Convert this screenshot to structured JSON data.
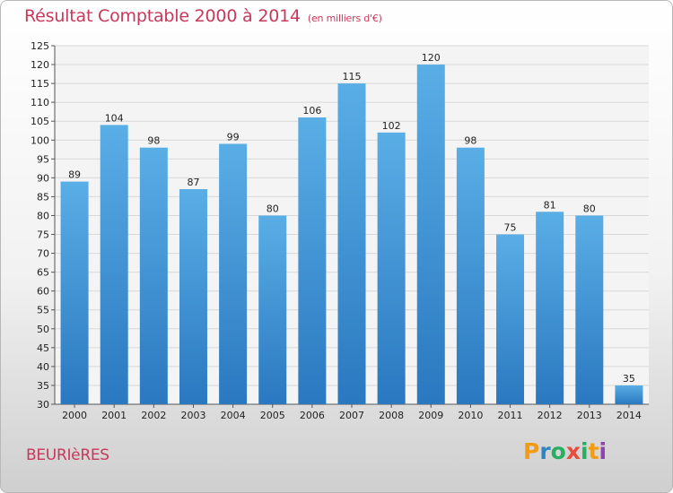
{
  "title": "Résultat Comptable 2000 à 2014",
  "subtitle": "(en milliers d'€)",
  "commune": "BEURIèRES",
  "logo": {
    "letters": [
      "P",
      "r",
      "o",
      "x",
      "i",
      "t",
      "i"
    ],
    "colors": [
      "#f39c12",
      "#2e86c1",
      "#27ae60",
      "#e74c3c",
      "#27ae60",
      "#f39c12",
      "#8e44ad"
    ]
  },
  "colors": {
    "bar_top": "#5aaee6",
    "bar_bottom": "#2a78c0",
    "grid": "#d8d8d8",
    "title": "#c8385a"
  },
  "chart_data": {
    "type": "bar",
    "title": "Résultat Comptable 2000 à 2014",
    "subtitle": "(en milliers d'€)",
    "categories": [
      "2000",
      "2001",
      "2002",
      "2003",
      "2004",
      "2005",
      "2006",
      "2007",
      "2008",
      "2009",
      "2010",
      "2011",
      "2012",
      "2013",
      "2014"
    ],
    "values": [
      89,
      104,
      98,
      87,
      99,
      80,
      106,
      115,
      102,
      120,
      98,
      75,
      81,
      80,
      35
    ],
    "ylim": [
      30,
      125
    ],
    "ytick_step": 5,
    "grid": true,
    "xlabel": "",
    "ylabel": ""
  }
}
